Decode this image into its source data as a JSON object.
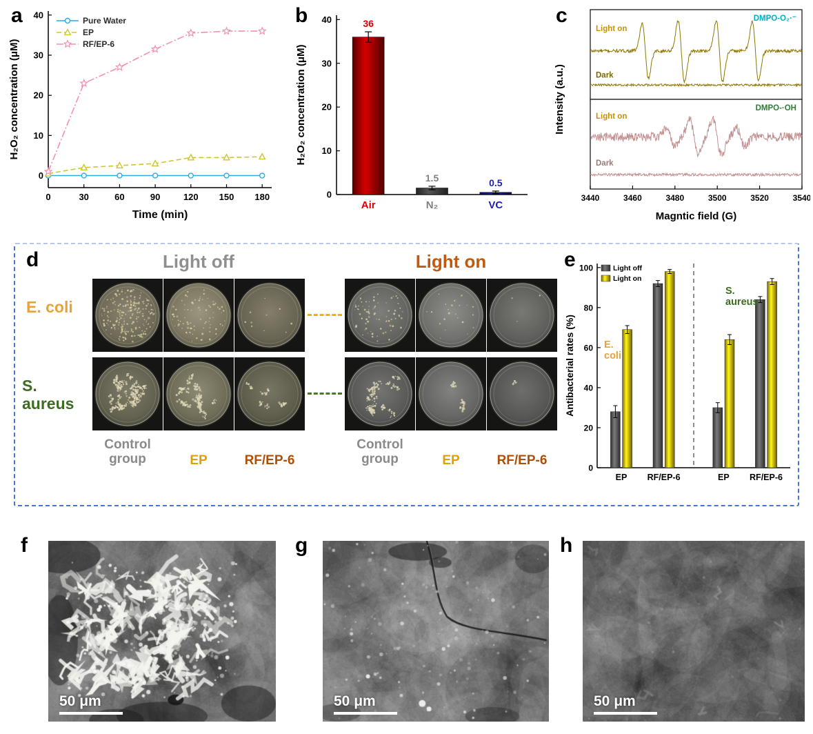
{
  "colors": {
    "light_off_header": "#8f8f8f",
    "light_on_header": "#C05A11",
    "e_coli": "#E8A23C",
    "s_aureus": "#3E6B22",
    "control_label": "#8a8a8a",
    "ep_label": "#E0A000",
    "rfep_label": "#AE4F07",
    "box_border": "#4a74c8",
    "connector_e_coli": "#E8B800",
    "connector_s_aureus": "#4a7a1e"
  },
  "panels": {
    "a": {
      "label": "a"
    },
    "b": {
      "label": "b"
    },
    "c": {
      "label": "c"
    },
    "d": {
      "label": "d",
      "header_light_off": "Light off",
      "header_light_on": "Light on",
      "row_e_coli": "E. coli",
      "row_s_aureus": "S. aureus",
      "captions": [
        "Control group",
        "EP",
        "RF/EP-6"
      ],
      "colony_counts": {
        "e_coli_off": [
          210,
          85,
          10
        ],
        "e_coli_on": [
          75,
          22,
          3
        ],
        "s_aureus_off": [
          260,
          170,
          48
        ],
        "s_aureus_on": [
          160,
          38,
          12
        ]
      }
    },
    "e": {
      "label": "e"
    },
    "f": {
      "label": "f"
    },
    "g": {
      "label": "g"
    },
    "h": {
      "label": "h"
    }
  },
  "sem": {
    "scale_label": "50 μm",
    "panels": [
      {
        "id": "f",
        "base": "#6b6b6b",
        "style": "dendrites"
      },
      {
        "id": "g",
        "base": "#7a7a7a",
        "style": "crack"
      },
      {
        "id": "h",
        "base": "#5c5c5c",
        "style": "plain"
      }
    ]
  },
  "chart_data": [
    {
      "id": "a",
      "type": "line",
      "xlabel": "Time (min)",
      "ylabel": "H₂O₂ concentration (μM)",
      "xlim": [
        0,
        180
      ],
      "ylim": [
        0,
        40
      ],
      "xticks": [
        0,
        30,
        60,
        90,
        120,
        150,
        180
      ],
      "yticks": [
        0,
        10,
        20,
        30,
        40
      ],
      "legend_position": "top-left",
      "series": [
        {
          "name": "Pure Water",
          "color": "#29ABE2",
          "marker": "circle",
          "line": "solid",
          "x": [
            0,
            30,
            60,
            90,
            120,
            150,
            180
          ],
          "y": [
            0,
            0,
            0,
            0,
            0,
            0,
            0
          ]
        },
        {
          "name": "EP",
          "color": "#CEC52B",
          "marker": "triangle",
          "line": "dashed",
          "x": [
            0,
            30,
            60,
            90,
            120,
            150,
            180
          ],
          "y": [
            0.5,
            2,
            2.5,
            3,
            4.5,
            4.5,
            4.7
          ]
        },
        {
          "name": "RF/EP-6",
          "color": "#F48FB1",
          "marker": "star",
          "line": "dashdot",
          "x": [
            0,
            30,
            60,
            90,
            120,
            150,
            180
          ],
          "y": [
            1,
            23,
            27,
            31.5,
            35.5,
            36,
            36
          ]
        }
      ]
    },
    {
      "id": "b",
      "type": "bar",
      "categories": [
        "Air",
        "N₂",
        "VC"
      ],
      "values": [
        36,
        1.5,
        0.5
      ],
      "errors": [
        1.2,
        0.4,
        0.3
      ],
      "value_labels": [
        "36",
        "1.5",
        "0.5"
      ],
      "bar_colors": [
        "#A00000",
        "#3F3F3F",
        "#14148C"
      ],
      "label_colors": [
        "#E00000",
        "#808080",
        "#2020B0"
      ],
      "ylabel": "H₂O₂ concentration (μM)",
      "ylim": [
        0,
        40
      ],
      "yticks": [
        0,
        10,
        20,
        30,
        40
      ]
    },
    {
      "id": "c",
      "type": "line",
      "subtype": "epr-spectra",
      "xlabel": "Magntic field (G)",
      "ylabel": "Intensity (a.u.)",
      "xlim": [
        3440,
        3540
      ],
      "xticks": [
        3440,
        3460,
        3480,
        3500,
        3520,
        3540
      ],
      "subplots": [
        {
          "tag": "DMPO-O₂·⁻",
          "tag_color": "#00AEC4",
          "trace_color": "#8F7600",
          "traces": [
            {
              "name": "Light on",
              "label_color": "#C79100",
              "base": 0.46,
              "label_y": 0.16,
              "peaks": [
                3466,
                3483,
                3501,
                3518
              ],
              "amps": [
                0.9,
                1,
                1,
                0.95
              ],
              "width": 1.5,
              "scale": 0.34,
              "noise": 0.018
            },
            {
              "name": "Dark",
              "label_color": "#7a6a00",
              "base": 0.84,
              "label_y": 0.68,
              "peaks": [],
              "amps": [],
              "width": 1,
              "scale": 0,
              "noise": 0.012
            }
          ]
        },
        {
          "tag": "DMPO-·OH",
          "tag_color": "#2E7D32",
          "trace_color": "#C39090",
          "traces": [
            {
              "name": "Light on",
              "label_color": "#C79100",
              "base": 0.42,
              "label_y": 0.14,
              "peaks": [
                3478,
                3489,
                3500,
                3511
              ],
              "amps": [
                1,
                2,
                2,
                1
              ],
              "width": 2.0,
              "scale": 0.2,
              "noise": 0.05
            },
            {
              "name": "Dark",
              "label_color": "#9b7b7b",
              "base": 0.84,
              "label_y": 0.66,
              "peaks": [],
              "amps": [],
              "width": 1,
              "scale": 0,
              "noise": 0.015
            }
          ]
        }
      ]
    },
    {
      "id": "e",
      "type": "bar",
      "grouped": true,
      "categories": [
        "EP",
        "RF/EP-6",
        "EP",
        "RF/EP-6"
      ],
      "series": [
        {
          "name": "Light off",
          "color": "#5A5A5A",
          "values": [
            28,
            92,
            30,
            84
          ],
          "errors": [
            3,
            1.5,
            2.5,
            1.5
          ]
        },
        {
          "name": "Light on",
          "color": "#E8B810",
          "values": [
            69,
            98,
            64,
            93
          ],
          "errors": [
            2,
            1,
            2.5,
            1.5
          ]
        }
      ],
      "ylabel": "Antibacterial rates (%)",
      "ylim": [
        0,
        100
      ],
      "yticks": [
        0,
        20,
        40,
        60,
        80,
        100
      ],
      "divider_after_category": 2,
      "annotations": [
        {
          "text": "E. coli",
          "color": "#E8A23C"
        },
        {
          "text": "S. aureus",
          "color": "#3E6B22"
        }
      ]
    }
  ]
}
